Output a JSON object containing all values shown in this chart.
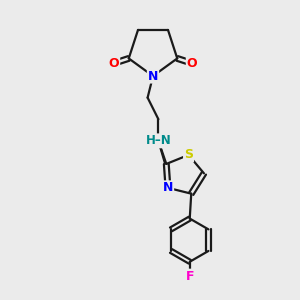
{
  "bg_color": "#ebebeb",
  "bond_color": "#1a1a1a",
  "atom_colors": {
    "O": "#ff0000",
    "N": "#0000ff",
    "NH": "#008b8b",
    "S": "#cccc00",
    "F": "#ff00cc",
    "C": "#1a1a1a"
  },
  "figsize": [
    3.0,
    3.0
  ],
  "dpi": 100
}
